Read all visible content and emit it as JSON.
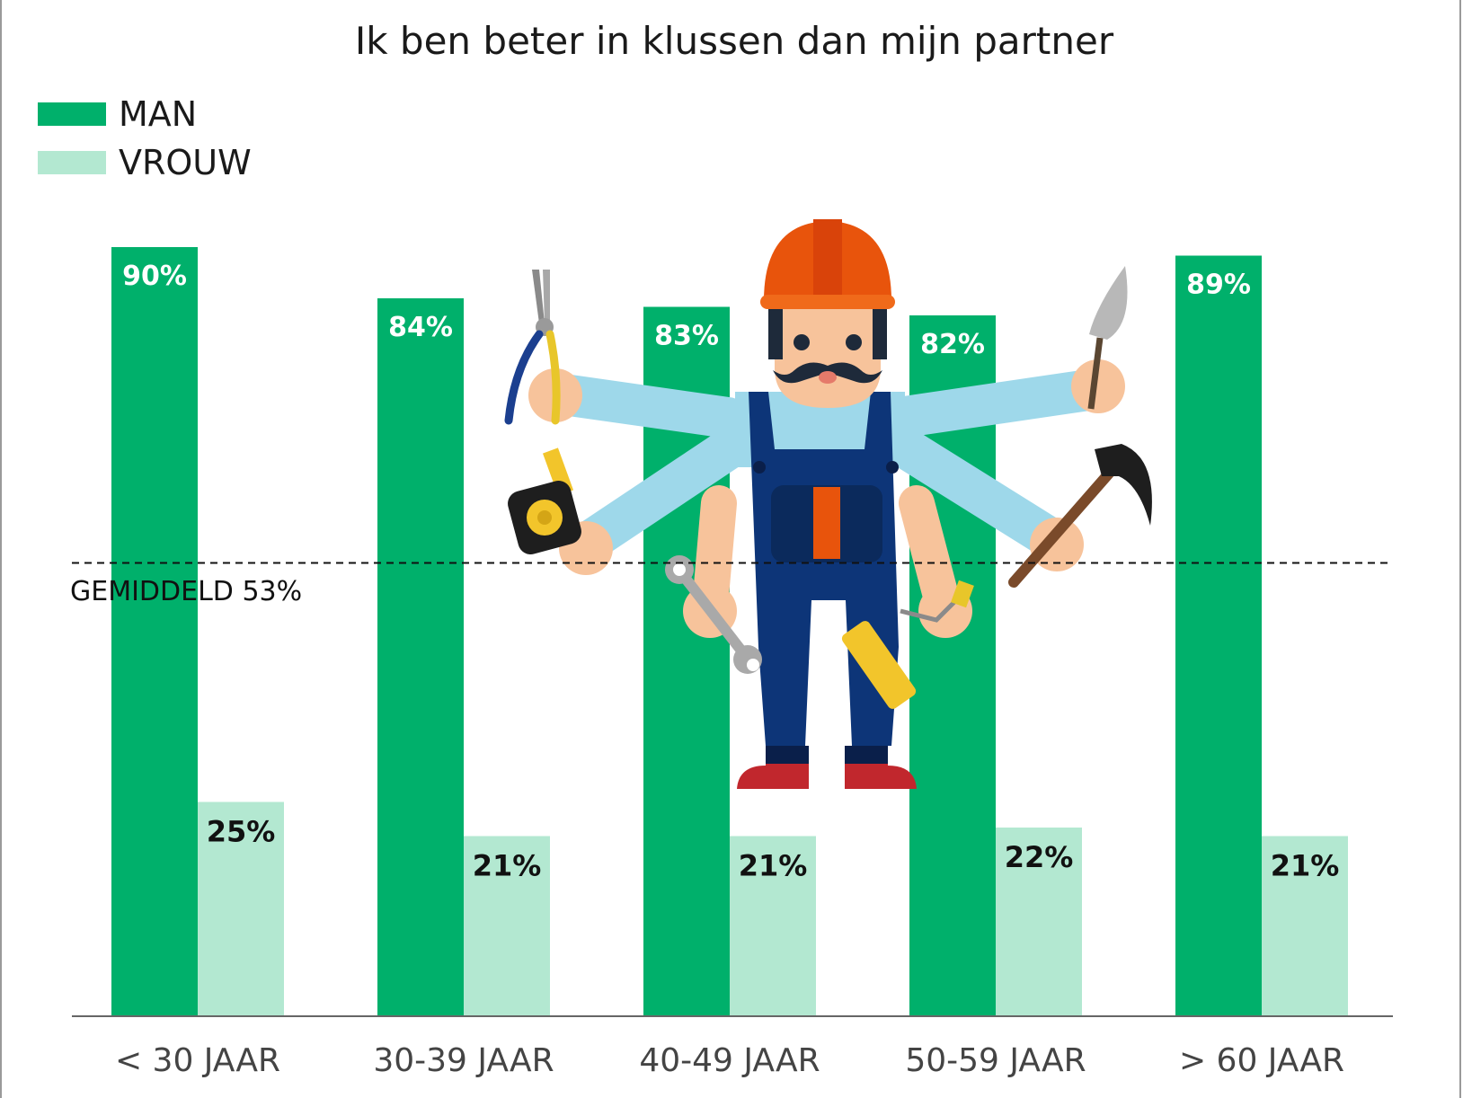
{
  "chart_data": {
    "type": "bar",
    "title": "Ik ben beter in klussen dan mijn partner",
    "categories": [
      "< 30 JAAR",
      "30-39 JAAR",
      "40-49 JAAR",
      "50-59 JAAR",
      "> 60 JAAR"
    ],
    "series": [
      {
        "name": "MAN",
        "values": [
          90,
          84,
          83,
          82,
          89
        ],
        "labels": [
          "90%",
          "84%",
          "83%",
          "82%",
          "89%"
        ],
        "color": "#00b06b"
      },
      {
        "name": "VROUW",
        "values": [
          25,
          21,
          21,
          22,
          21
        ],
        "labels": [
          "25%",
          "21%",
          "21%",
          "22%",
          "21%"
        ],
        "color": "#b3e8d1"
      }
    ],
    "reference_line": {
      "value": 53,
      "label": "GEMIDDELD 53%",
      "style": "dashed"
    },
    "ylim": [
      0,
      100
    ],
    "grid": false,
    "legend_placement": "top-left",
    "xlabel": "",
    "ylabel": ""
  },
  "illustration": {
    "name": "handyman-with-tools-illustration",
    "colors": {
      "helmet": "#e8540c",
      "overalls": "#0d3578",
      "shirt": "#9ed8ea",
      "skin": "#f7c39b",
      "shoes": "#c1272d"
    }
  }
}
